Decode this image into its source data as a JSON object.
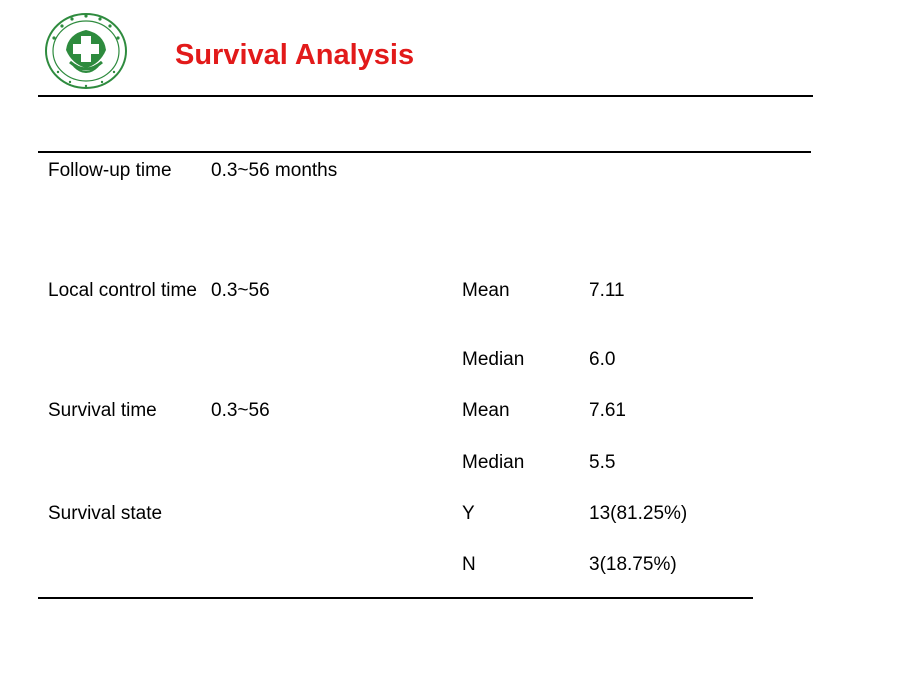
{
  "slide": {
    "title": "Survival Analysis",
    "title_color": "#e21a1a",
    "logo": {
      "icon": "hospital-cross-emblem-icon",
      "color": "#2e8b3e"
    }
  },
  "table": {
    "rows": [
      {
        "label": "Follow-up time",
        "range": "0.3~56 months",
        "stat": "",
        "value": ""
      },
      {
        "label": "Local control time",
        "range": "0.3~56",
        "stat": "Mean",
        "value": "7.11"
      },
      {
        "label": "",
        "range": "",
        "stat": "Median",
        "value": "6.0"
      },
      {
        "label": "Survival time",
        "range": "0.3~56",
        "stat": "Mean",
        "value": "7.61"
      },
      {
        "label": "",
        "range": "",
        "stat": "Median",
        "value": "5.5"
      },
      {
        "label": "Survival state",
        "range": "",
        "stat": "Y",
        "value": "13(81.25%)"
      },
      {
        "label": "",
        "range": "",
        "stat": "N",
        "value": "3(18.75%)"
      }
    ]
  }
}
